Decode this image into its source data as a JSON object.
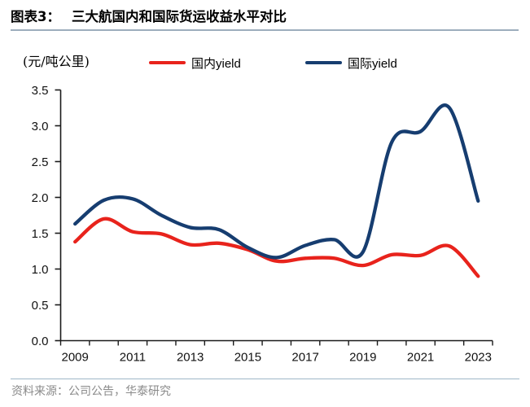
{
  "header": {
    "chart_label": "图表3：",
    "title": "三大航国内和国际货运收益水平对比"
  },
  "unit_label": "(元/吨公里)",
  "footer": {
    "source": "资料来源：公司公告，华泰研究"
  },
  "colors": {
    "domestic_red": "#e8231c",
    "international_blue": "#163d70",
    "axis": "#1a1a1a",
    "divider": "#9dadbd",
    "footer_divider": "#a0b8c8",
    "footer_text": "#8a8a8a"
  },
  "chart_data": {
    "type": "line",
    "title": "三大航国内和国际货运收益水平对比",
    "xlabel": "",
    "ylabel": "(元/吨公里)",
    "x": [
      2009,
      2010,
      2011,
      2012,
      2013,
      2014,
      2015,
      2016,
      2017,
      2018,
      2019,
      2020,
      2021,
      2022,
      2023
    ],
    "series": [
      {
        "key": "domestic",
        "name": "国内yield",
        "color": "#e8231c",
        "values": [
          1.38,
          1.7,
          1.52,
          1.49,
          1.34,
          1.36,
          1.27,
          1.11,
          1.15,
          1.15,
          1.05,
          1.2,
          1.19,
          1.32,
          0.9
        ]
      },
      {
        "key": "international",
        "name": "国际yield",
        "color": "#163d70",
        "values": [
          1.63,
          1.96,
          1.98,
          1.75,
          1.58,
          1.55,
          1.3,
          1.16,
          1.33,
          1.41,
          1.24,
          2.77,
          2.92,
          3.25,
          1.95
        ]
      }
    ],
    "ylim": [
      0.0,
      3.5
    ],
    "yticks": [
      0.0,
      0.5,
      1.0,
      1.5,
      2.0,
      2.5,
      3.0,
      3.5
    ],
    "xtick_labels": [
      "2009",
      "2011",
      "2013",
      "2015",
      "2017",
      "2019",
      "2021",
      "2023"
    ],
    "grid": false,
    "legend_position": "top",
    "line_style": "smooth"
  }
}
